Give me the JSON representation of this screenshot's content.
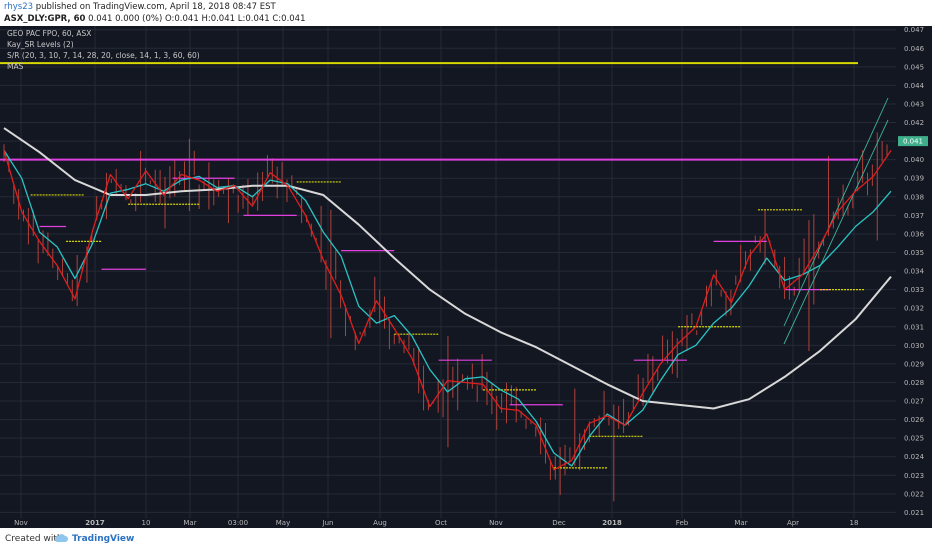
{
  "header": {
    "username": "rhys23",
    "published_text": "published on TradingView.com, April 18, 2018 08:47 EST",
    "symbol": "ASX_DLY:GPR, 60",
    "quote": "0.041  0.000 (0%)  O:0.041  H:0.041  L:0.041  C:0.041"
  },
  "legend": {
    "title": "GEO PAC FPO, 60, ASX",
    "line2": "Kay_SR Levels (2)",
    "line3": "S/R (20, 3, 10, 7, 14, 28, 20, close, 14, 1, 3, 60, 60)",
    "line4": "MAS"
  },
  "footer": {
    "created_with": "Created with",
    "brand": "TradingView"
  },
  "colors": {
    "background": "#131722",
    "grid": "#262a36",
    "candle": "#b0413a",
    "ma_fast": "#e01e1e",
    "ma_mid": "#29c4c4",
    "ma_slow": "#d8d8d8",
    "resistance_yellow": "#d8d800",
    "resistance_magenta": "#e040e0",
    "trend_channel": "#3bb39a",
    "price_label": "#3fae8a"
  },
  "chart_data": {
    "type": "line",
    "x_tick_labels": [
      "Nov",
      "2017",
      "10",
      "Mar",
      "03:00",
      "May",
      "Jun",
      "Aug",
      "Oct",
      "Nov",
      "Dec",
      "2018",
      "Feb",
      "Mar",
      "Apr",
      "18"
    ],
    "y_tick_labels": [
      "0.047",
      "0.046",
      "0.045",
      "0.044",
      "0.043",
      "0.042",
      "0.041",
      "0.040",
      "0.039",
      "0.038",
      "0.037",
      "0.036",
      "0.035",
      "0.034",
      "0.033",
      "0.032",
      "0.031",
      "0.030",
      "0.029",
      "0.028",
      "0.027",
      "0.026",
      "0.025",
      "0.024",
      "0.023",
      "0.022",
      "0.021"
    ],
    "ylim": [
      0.0207,
      0.0472
    ],
    "last_price_label": "0.041",
    "last_price": 0.041,
    "levels": [
      {
        "name": "resistance-yellow",
        "value": 0.0452
      },
      {
        "name": "resistance-magenta",
        "value": 0.04
      }
    ],
    "series": [
      {
        "name": "MAS slow",
        "color": "#d8d8d8",
        "x": [
          0,
          4,
          8,
          12,
          16,
          20,
          24,
          28,
          32,
          36,
          40,
          44,
          48,
          52,
          56,
          60,
          64,
          68,
          72,
          76,
          80,
          84,
          88,
          92,
          96,
          100
        ],
        "values": [
          0.0417,
          0.0404,
          0.0389,
          0.0381,
          0.0381,
          0.0383,
          0.0384,
          0.0386,
          0.0386,
          0.0381,
          0.0365,
          0.0347,
          0.033,
          0.0317,
          0.0307,
          0.0299,
          0.0289,
          0.0279,
          0.027,
          0.0268,
          0.0266,
          0.0271,
          0.0283,
          0.0297,
          0.0314,
          0.0337
        ]
      },
      {
        "name": "MAS mid",
        "color": "#29c4c4",
        "x": [
          0,
          2,
          4,
          6,
          8,
          10,
          12,
          14,
          16,
          18,
          20,
          22,
          24,
          26,
          28,
          30,
          32,
          34,
          36,
          38,
          40,
          42,
          44,
          46,
          48,
          50,
          52,
          54,
          56,
          58,
          60,
          62,
          64,
          66,
          68,
          70,
          72,
          74,
          76,
          78,
          80,
          82,
          84,
          86,
          88,
          90,
          92,
          94,
          96,
          98,
          100
        ],
        "values": [
          0.0405,
          0.039,
          0.0361,
          0.0353,
          0.0336,
          0.0355,
          0.0382,
          0.0384,
          0.0387,
          0.0383,
          0.0389,
          0.0391,
          0.0385,
          0.0386,
          0.038,
          0.0389,
          0.0387,
          0.0378,
          0.0361,
          0.0348,
          0.0321,
          0.0312,
          0.0316,
          0.0305,
          0.0287,
          0.0275,
          0.0282,
          0.0283,
          0.0276,
          0.0271,
          0.0259,
          0.0242,
          0.0235,
          0.0251,
          0.0263,
          0.0257,
          0.0265,
          0.0281,
          0.0295,
          0.03,
          0.0312,
          0.032,
          0.0332,
          0.0347,
          0.0335,
          0.0338,
          0.0343,
          0.0353,
          0.0364,
          0.0372,
          0.0383
        ]
      },
      {
        "name": "MAS fast",
        "color": "#e01e1e",
        "x": [
          0,
          2,
          4,
          6,
          8,
          10,
          12,
          14,
          16,
          18,
          20,
          22,
          24,
          26,
          28,
          30,
          32,
          34,
          36,
          38,
          40,
          42,
          44,
          46,
          48,
          50,
          52,
          54,
          56,
          58,
          60,
          62,
          64,
          66,
          68,
          70,
          72,
          74,
          76,
          78,
          80,
          82,
          84,
          86,
          88,
          90,
          92,
          94,
          96,
          98,
          100
        ],
        "values": [
          0.0405,
          0.0372,
          0.0356,
          0.0343,
          0.0325,
          0.0362,
          0.0392,
          0.0379,
          0.0394,
          0.0381,
          0.0392,
          0.0389,
          0.0383,
          0.0386,
          0.0375,
          0.0393,
          0.0386,
          0.037,
          0.0346,
          0.0327,
          0.0301,
          0.0324,
          0.0309,
          0.0293,
          0.0267,
          0.0281,
          0.028,
          0.0279,
          0.0266,
          0.0265,
          0.0257,
          0.0233,
          0.0238,
          0.0258,
          0.0262,
          0.0257,
          0.0274,
          0.029,
          0.0301,
          0.031,
          0.0338,
          0.0323,
          0.0348,
          0.036,
          0.033,
          0.0338,
          0.0354,
          0.0372,
          0.0383,
          0.0391,
          0.0405
        ]
      }
    ]
  }
}
